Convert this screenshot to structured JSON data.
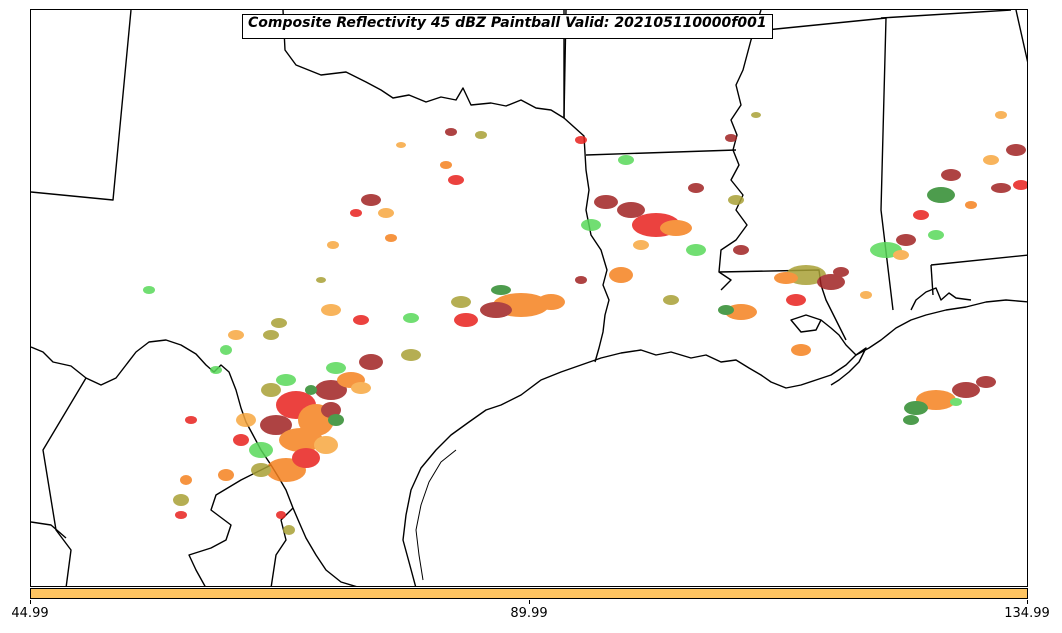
{
  "map": {
    "title": "Composite Reflectivity 45 dBZ Paintball Valid: 202105110000f001",
    "region": "Texas, Oklahoma, Arkansas, Louisiana, Mississippi and Gulf Coast",
    "colors": {
      "land_lines": "#000000",
      "background": "#ffffff",
      "paintball_palette": [
        "#e8221e",
        "#f5821f",
        "#a02323",
        "#59d95a",
        "#2e8b2e",
        "#a9a136",
        "#f7a740",
        "#ff4d4d"
      ]
    }
  },
  "colorbar": {
    "color": "#fec461",
    "ticks": [
      "44.99",
      "89.99",
      "134.99"
    ]
  }
}
